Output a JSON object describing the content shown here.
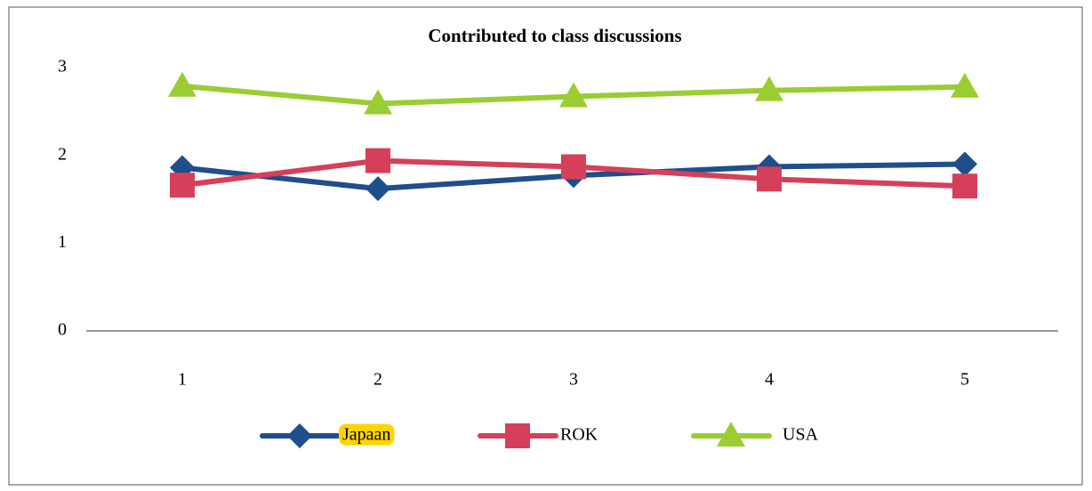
{
  "chart_data": {
    "type": "line",
    "title": "Contributed to class discussions",
    "categories": [
      "1",
      "2",
      "3",
      "4",
      "5"
    ],
    "series": [
      {
        "name": "Japaan",
        "color": "#1f4e8c",
        "marker": "diamond",
        "values": [
          1.86,
          1.62,
          1.77,
          1.87,
          1.9
        ]
      },
      {
        "name": "ROK",
        "color": "#d63f5a",
        "marker": "square",
        "values": [
          1.66,
          1.94,
          1.87,
          1.73,
          1.65
        ]
      },
      {
        "name": "USA",
        "color": "#9acd32",
        "marker": "triangle",
        "values": [
          2.79,
          2.59,
          2.67,
          2.74,
          2.78
        ]
      }
    ],
    "ylim": [
      0,
      3
    ],
    "yticks": [
      0,
      1,
      2,
      3
    ],
    "grid": false,
    "legend": "bottom"
  }
}
